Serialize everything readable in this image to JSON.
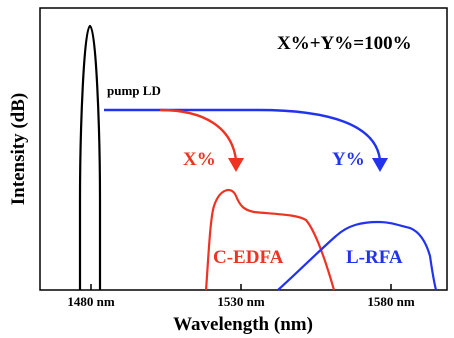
{
  "figure": {
    "title_equation": "X%+Y%=100%",
    "pump_label": "pump LD",
    "split_labels": {
      "x": "X%",
      "y": "Y%"
    },
    "band_labels": {
      "c_edfa": "C-EDFA",
      "l_rfa": "L-RFA"
    },
    "axis": {
      "xlabel": "Wavelength (nm)",
      "ylabel": "Intensity (dB)",
      "ticks": [
        "1480 nm",
        "1530 nm",
        "1580 nm"
      ]
    },
    "colors": {
      "pump": "#000000",
      "c_edfa": "#ee3322",
      "l_rfa": "#2233ee",
      "axes": "#000000"
    }
  }
}
